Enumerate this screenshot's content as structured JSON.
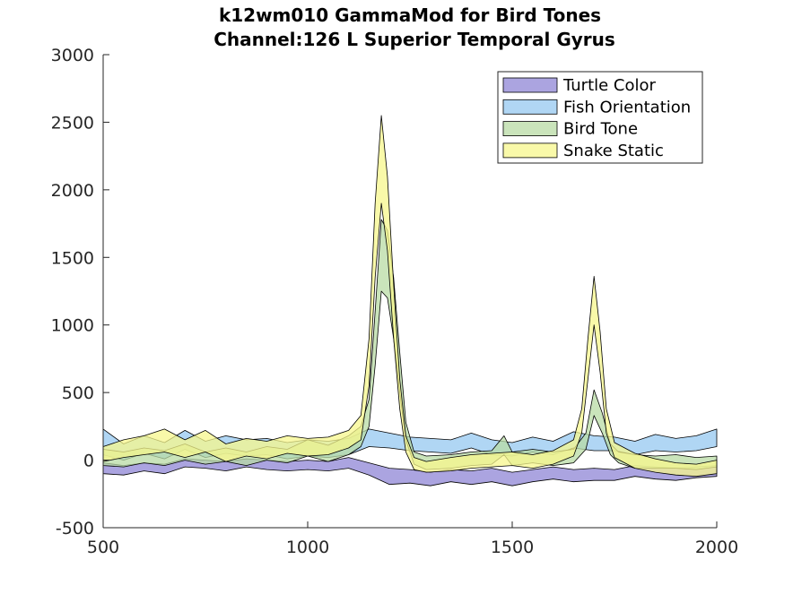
{
  "chart_data": {
    "type": "area",
    "title": "k12wm010 GammaMod for Bird Tones",
    "subtitle": "Channel:126 L Superior Temporal Gyrus",
    "xlabel": "",
    "ylabel": "",
    "xlim": [
      500,
      2000
    ],
    "ylim": [
      -500,
      3000
    ],
    "xticks": [
      500,
      1000,
      1500,
      2000
    ],
    "yticks": [
      -500,
      0,
      500,
      1000,
      1500,
      2000,
      2500,
      3000
    ],
    "grid": false,
    "legend_position": "top-right",
    "series": [
      {
        "name": "Turtle Color",
        "color": "#8f86d6",
        "x": [
          500,
          550,
          600,
          650,
          700,
          750,
          800,
          850,
          900,
          950,
          1000,
          1050,
          1100,
          1150,
          1200,
          1250,
          1300,
          1350,
          1400,
          1450,
          1500,
          1550,
          1600,
          1650,
          1700,
          1750,
          1800,
          1850,
          1900,
          1950,
          2000
        ],
        "upper": [
          -20,
          -40,
          -20,
          -30,
          10,
          0,
          -10,
          10,
          0,
          -10,
          0,
          -10,
          20,
          -20,
          -60,
          -70,
          -90,
          -70,
          -80,
          -60,
          -90,
          -70,
          -50,
          -70,
          -60,
          -70,
          -40,
          -50,
          -60,
          -50,
          -40
        ],
        "lower": [
          -100,
          -110,
          -80,
          -100,
          -50,
          -60,
          -80,
          -50,
          -70,
          -80,
          -70,
          -80,
          -60,
          -110,
          -180,
          -170,
          -190,
          -160,
          -180,
          -160,
          -190,
          -160,
          -140,
          -160,
          -150,
          -150,
          -120,
          -140,
          -150,
          -130,
          -120
        ]
      },
      {
        "name": "Fish Orientation",
        "color": "#95c8f0",
        "x": [
          500,
          550,
          600,
          650,
          700,
          750,
          800,
          850,
          900,
          950,
          1000,
          1050,
          1100,
          1150,
          1200,
          1250,
          1300,
          1350,
          1400,
          1450,
          1500,
          1550,
          1600,
          1650,
          1700,
          1750,
          1800,
          1850,
          1900,
          1950,
          2000
        ],
        "upper": [
          230,
          120,
          180,
          130,
          220,
          140,
          180,
          150,
          160,
          130,
          150,
          140,
          160,
          230,
          200,
          170,
          160,
          150,
          200,
          150,
          130,
          170,
          140,
          210,
          180,
          170,
          140,
          190,
          160,
          180,
          230
        ],
        "lower": [
          40,
          0,
          50,
          10,
          80,
          20,
          50,
          30,
          40,
          10,
          30,
          20,
          40,
          100,
          90,
          70,
          60,
          50,
          90,
          40,
          30,
          60,
          40,
          90,
          70,
          70,
          40,
          70,
          60,
          70,
          100
        ]
      },
      {
        "name": "Bird Tone",
        "color": "#b8dba4",
        "x": [
          500,
          550,
          600,
          650,
          700,
          750,
          800,
          850,
          900,
          950,
          1000,
          1050,
          1100,
          1130,
          1150,
          1165,
          1180,
          1195,
          1210,
          1225,
          1240,
          1260,
          1290,
          1350,
          1400,
          1450,
          1480,
          1500,
          1550,
          1600,
          1650,
          1680,
          1700,
          1720,
          1740,
          1760,
          1800,
          1850,
          1900,
          1950,
          2000
        ],
        "upper": [
          80,
          60,
          90,
          70,
          120,
          60,
          90,
          60,
          100,
          80,
          150,
          110,
          180,
          250,
          450,
          1100,
          1780,
          1700,
          1350,
          800,
          280,
          60,
          30,
          40,
          60,
          70,
          180,
          60,
          80,
          60,
          80,
          200,
          520,
          350,
          120,
          60,
          40,
          30,
          40,
          20,
          30
        ],
        "lower": [
          -40,
          -50,
          -20,
          -40,
          0,
          -30,
          -10,
          -40,
          0,
          -20,
          30,
          -10,
          40,
          100,
          250,
          700,
          1250,
          1200,
          900,
          500,
          150,
          -30,
          -70,
          -60,
          -40,
          -30,
          40,
          -40,
          -20,
          -40,
          -20,
          80,
          330,
          200,
          40,
          -20,
          -60,
          -60,
          -60,
          -70,
          -50
        ]
      },
      {
        "name": "Snake Static",
        "color": "#f7f78c",
        "x": [
          500,
          550,
          600,
          650,
          700,
          750,
          800,
          850,
          900,
          950,
          1000,
          1050,
          1100,
          1130,
          1150,
          1165,
          1180,
          1195,
          1210,
          1225,
          1240,
          1260,
          1290,
          1350,
          1400,
          1450,
          1500,
          1550,
          1600,
          1650,
          1670,
          1685,
          1700,
          1715,
          1730,
          1750,
          1800,
          1850,
          1900,
          1950,
          2000
        ],
        "upper": [
          100,
          150,
          180,
          230,
          150,
          220,
          120,
          160,
          140,
          180,
          160,
          170,
          220,
          330,
          900,
          1900,
          2550,
          2100,
          1300,
          600,
          180,
          20,
          -10,
          20,
          40,
          50,
          60,
          40,
          70,
          150,
          380,
          900,
          1360,
          950,
          380,
          130,
          50,
          10,
          -20,
          -30,
          0
        ],
        "lower": [
          -10,
          20,
          40,
          60,
          20,
          60,
          -10,
          30,
          10,
          50,
          30,
          40,
          90,
          150,
          550,
          1350,
          1900,
          1550,
          900,
          380,
          60,
          -70,
          -90,
          -80,
          -60,
          -50,
          -40,
          -60,
          -30,
          30,
          200,
          600,
          1000,
          650,
          200,
          20,
          -60,
          -90,
          -110,
          -120,
          -100
        ]
      }
    ]
  }
}
